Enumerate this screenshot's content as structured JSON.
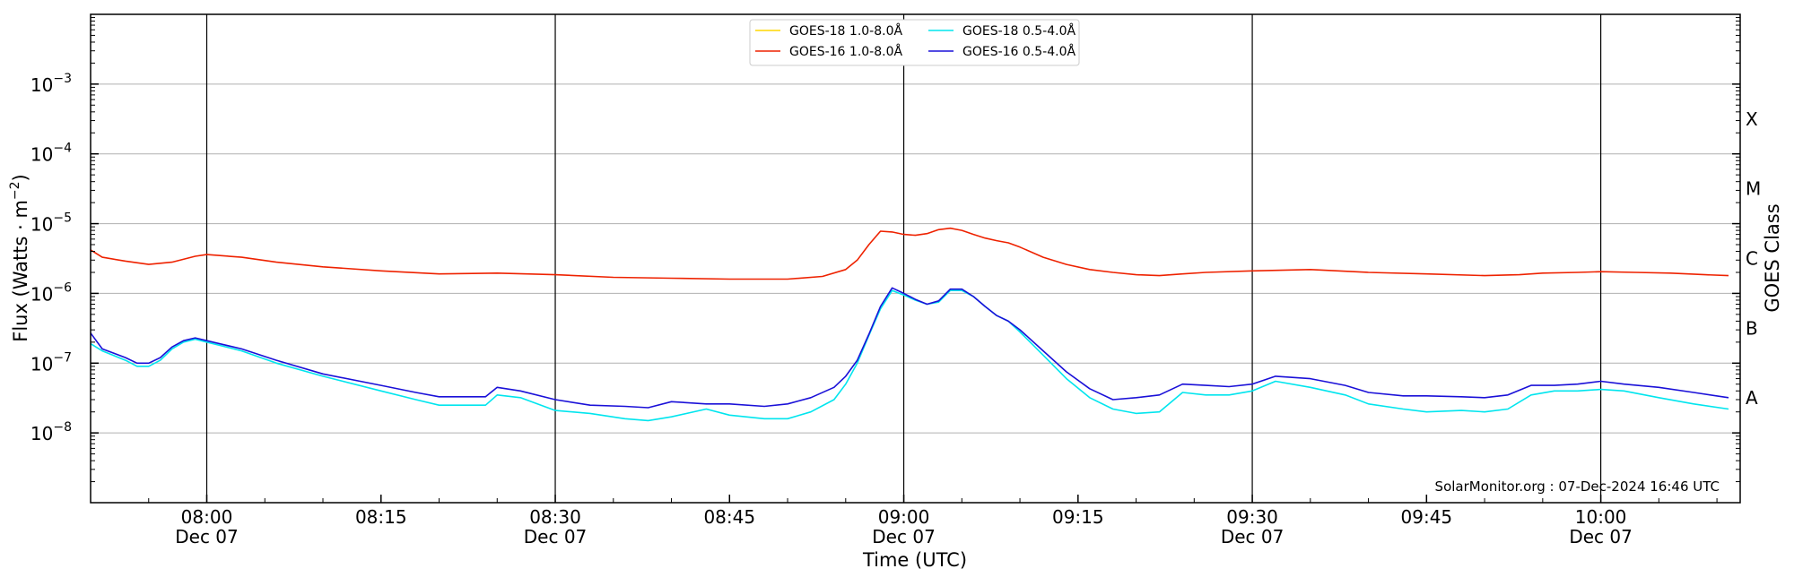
{
  "chart_data": {
    "type": "line",
    "title": "",
    "xlabel": "Time (UTC)",
    "ylabel_base": "Flux (Watts · m",
    "ylabel_exp": "−2",
    "ylabel_end": ")",
    "right_label": "GOES Class",
    "yscale": "log",
    "ylim": [
      1e-09,
      0.01
    ],
    "xlim": [
      "07:50",
      "10:12"
    ],
    "xticks": [
      {
        "x": "08:00",
        "line1": "08:00",
        "line2": "Dec 07",
        "major": true
      },
      {
        "x": "08:15",
        "line1": "08:15",
        "line2": "",
        "major": false
      },
      {
        "x": "08:30",
        "line1": "08:30",
        "line2": "Dec 07",
        "major": true
      },
      {
        "x": "08:45",
        "line1": "08:45",
        "line2": "",
        "major": false
      },
      {
        "x": "09:00",
        "line1": "09:00",
        "line2": "Dec 07",
        "major": true
      },
      {
        "x": "09:15",
        "line1": "09:15",
        "line2": "",
        "major": false
      },
      {
        "x": "09:30",
        "line1": "09:30",
        "line2": "Dec 07",
        "major": true
      },
      {
        "x": "09:45",
        "line1": "09:45",
        "line2": "",
        "major": false
      },
      {
        "x": "10:00",
        "line1": "10:00",
        "line2": "Dec 07",
        "major": true
      }
    ],
    "yticks": [
      {
        "exp": -8,
        "base": "10",
        "sup": "−8"
      },
      {
        "exp": -7,
        "base": "10",
        "sup": "−7"
      },
      {
        "exp": -6,
        "base": "10",
        "sup": "−6"
      },
      {
        "exp": -5,
        "base": "10",
        "sup": "−5"
      },
      {
        "exp": -4,
        "base": "10",
        "sup": "−4"
      },
      {
        "exp": -3,
        "base": "10",
        "sup": "−3"
      }
    ],
    "goes_classes": [
      {
        "label": "A",
        "exp": -7.5
      },
      {
        "label": "B",
        "exp": -6.5
      },
      {
        "label": "C",
        "exp": -5.5
      },
      {
        "label": "M",
        "exp": -4.5
      },
      {
        "label": "X",
        "exp": -3.5
      }
    ],
    "grid": "horizontal at decades; vertical at day-label ticks",
    "legend_position": "top-center",
    "credit": "SolarMonitor.org : 07-Dec-2024 16:46 UTC",
    "series": [
      {
        "name": "GOES-18 1.0-8.0Å",
        "color": "#ffd700",
        "x": [],
        "y": []
      },
      {
        "name": "GOES-16 1.0-8.0Å",
        "color": "#ee2200",
        "x": [
          "07:50",
          "07:51",
          "07:53",
          "07:55",
          "07:57",
          "07:59",
          "08:00",
          "08:03",
          "08:06",
          "08:10",
          "08:15",
          "08:20",
          "08:25",
          "08:30",
          "08:35",
          "08:40",
          "08:45",
          "08:50",
          "08:53",
          "08:55",
          "08:56",
          "08:57",
          "08:58",
          "08:59",
          "09:00",
          "09:01",
          "09:02",
          "09:03",
          "09:04",
          "09:05",
          "09:06",
          "09:07",
          "09:08",
          "09:09",
          "09:10",
          "09:12",
          "09:14",
          "09:16",
          "09:18",
          "09:20",
          "09:22",
          "09:24",
          "09:26",
          "09:30",
          "09:35",
          "09:40",
          "09:45",
          "09:50",
          "09:53",
          "09:55",
          "09:58",
          "10:00",
          "10:03",
          "10:06",
          "10:09",
          "10:11"
        ],
        "y": [
          4.2e-06,
          3.3e-06,
          2.9e-06,
          2.6e-06,
          2.8e-06,
          3.4e-06,
          3.6e-06,
          3.3e-06,
          2.8e-06,
          2.4e-06,
          2.1e-06,
          1.9e-06,
          1.95e-06,
          1.85e-06,
          1.7e-06,
          1.65e-06,
          1.6e-06,
          1.6e-06,
          1.75e-06,
          2.2e-06,
          3e-06,
          5e-06,
          7.8e-06,
          7.6e-06,
          7e-06,
          6.8e-06,
          7.2e-06,
          8.2e-06,
          8.6e-06,
          8e-06,
          7e-06,
          6.2e-06,
          5.7e-06,
          5.3e-06,
          4.6e-06,
          3.3e-06,
          2.6e-06,
          2.2e-06,
          2e-06,
          1.85e-06,
          1.8e-06,
          1.9e-06,
          2e-06,
          2.1e-06,
          2.2e-06,
          2e-06,
          1.9e-06,
          1.8e-06,
          1.85e-06,
          1.95e-06,
          2e-06,
          2.05e-06,
          2e-06,
          1.95e-06,
          1.85e-06,
          1.8e-06
        ]
      },
      {
        "name": "GOES-18 0.5-4.0Å",
        "color": "#00e5ee",
        "x": [
          "07:50",
          "07:51",
          "07:53",
          "07:54",
          "07:55",
          "07:56",
          "07:57",
          "07:58",
          "07:59",
          "08:00",
          "08:03",
          "08:06",
          "08:10",
          "08:15",
          "08:18",
          "08:20",
          "08:24",
          "08:25",
          "08:27",
          "08:30",
          "08:33",
          "08:36",
          "08:38",
          "08:40",
          "08:43",
          "08:45",
          "08:48",
          "08:50",
          "08:52",
          "08:54",
          "08:55",
          "08:56",
          "08:57",
          "08:58",
          "08:59",
          "09:00",
          "09:01",
          "09:02",
          "09:03",
          "09:04",
          "09:05",
          "09:06",
          "09:07",
          "09:08",
          "09:09",
          "09:10",
          "09:12",
          "09:14",
          "09:16",
          "09:18",
          "09:20",
          "09:22",
          "09:24",
          "09:26",
          "09:28",
          "09:30",
          "09:32",
          "09:35",
          "09:38",
          "09:40",
          "09:43",
          "09:45",
          "09:48",
          "09:50",
          "09:52",
          "09:54",
          "09:56",
          "09:58",
          "10:00",
          "10:02",
          "10:05",
          "10:08",
          "10:11"
        ],
        "y": [
          1.9e-07,
          1.5e-07,
          1.1e-07,
          9e-08,
          9e-08,
          1.1e-07,
          1.6e-07,
          2e-07,
          2.2e-07,
          2e-07,
          1.5e-07,
          1e-07,
          6.5e-08,
          4e-08,
          3e-08,
          2.5e-08,
          2.5e-08,
          3.5e-08,
          3.2e-08,
          2.1e-08,
          1.9e-08,
          1.6e-08,
          1.5e-08,
          1.7e-08,
          2.2e-08,
          1.8e-08,
          1.6e-08,
          1.6e-08,
          2e-08,
          3e-08,
          5e-08,
          1e-07,
          2.5e-07,
          6e-07,
          1.1e-06,
          9.5e-07,
          8e-07,
          7e-07,
          7.5e-07,
          1.1e-06,
          1.1e-06,
          9e-07,
          6.5e-07,
          4.8e-07,
          4e-07,
          2.8e-07,
          1.3e-07,
          6e-08,
          3.2e-08,
          2.2e-08,
          1.9e-08,
          2e-08,
          3.8e-08,
          3.5e-08,
          3.5e-08,
          4e-08,
          5.5e-08,
          4.5e-08,
          3.5e-08,
          2.6e-08,
          2.2e-08,
          2e-08,
          2.1e-08,
          2e-08,
          2.2e-08,
          3.5e-08,
          4e-08,
          4e-08,
          4.2e-08,
          4e-08,
          3.2e-08,
          2.6e-08,
          2.2e-08
        ]
      },
      {
        "name": "GOES-16 0.5-4.0Å",
        "color": "#1a10d8",
        "x": [
          "07:50",
          "07:51",
          "07:53",
          "07:54",
          "07:55",
          "07:56",
          "07:57",
          "07:58",
          "07:59",
          "08:00",
          "08:03",
          "08:06",
          "08:10",
          "08:15",
          "08:18",
          "08:20",
          "08:24",
          "08:25",
          "08:27",
          "08:30",
          "08:33",
          "08:36",
          "08:38",
          "08:40",
          "08:43",
          "08:45",
          "08:48",
          "08:50",
          "08:52",
          "08:54",
          "08:55",
          "08:56",
          "08:57",
          "08:58",
          "08:59",
          "09:00",
          "09:01",
          "09:02",
          "09:03",
          "09:04",
          "09:05",
          "09:06",
          "09:07",
          "09:08",
          "09:09",
          "09:10",
          "09:12",
          "09:14",
          "09:16",
          "09:18",
          "09:20",
          "09:22",
          "09:24",
          "09:26",
          "09:28",
          "09:30",
          "09:32",
          "09:35",
          "09:38",
          "09:40",
          "09:43",
          "09:45",
          "09:48",
          "09:50",
          "09:52",
          "09:54",
          "09:56",
          "09:58",
          "10:00",
          "10:02",
          "10:05",
          "10:08",
          "10:11"
        ],
        "y": [
          2.7e-07,
          1.6e-07,
          1.2e-07,
          1e-07,
          1e-07,
          1.2e-07,
          1.7e-07,
          2.1e-07,
          2.3e-07,
          2.1e-07,
          1.6e-07,
          1.1e-07,
          7e-08,
          4.8e-08,
          3.8e-08,
          3.3e-08,
          3.3e-08,
          4.5e-08,
          4e-08,
          3e-08,
          2.5e-08,
          2.4e-08,
          2.3e-08,
          2.8e-08,
          2.6e-08,
          2.6e-08,
          2.4e-08,
          2.6e-08,
          3.2e-08,
          4.5e-08,
          6.5e-08,
          1.1e-07,
          2.6e-07,
          6.5e-07,
          1.2e-06,
          1e-06,
          8.2e-07,
          7e-07,
          7.8e-07,
          1.15e-06,
          1.15e-06,
          9e-07,
          6.5e-07,
          4.8e-07,
          4e-07,
          3e-07,
          1.5e-07,
          7.5e-08,
          4.3e-08,
          3e-08,
          3.2e-08,
          3.5e-08,
          5e-08,
          4.8e-08,
          4.6e-08,
          5e-08,
          6.5e-08,
          6e-08,
          4.8e-08,
          3.8e-08,
          3.4e-08,
          3.4e-08,
          3.3e-08,
          3.2e-08,
          3.5e-08,
          4.8e-08,
          4.8e-08,
          5e-08,
          5.5e-08,
          5e-08,
          4.5e-08,
          3.8e-08,
          3.2e-08
        ]
      }
    ]
  }
}
